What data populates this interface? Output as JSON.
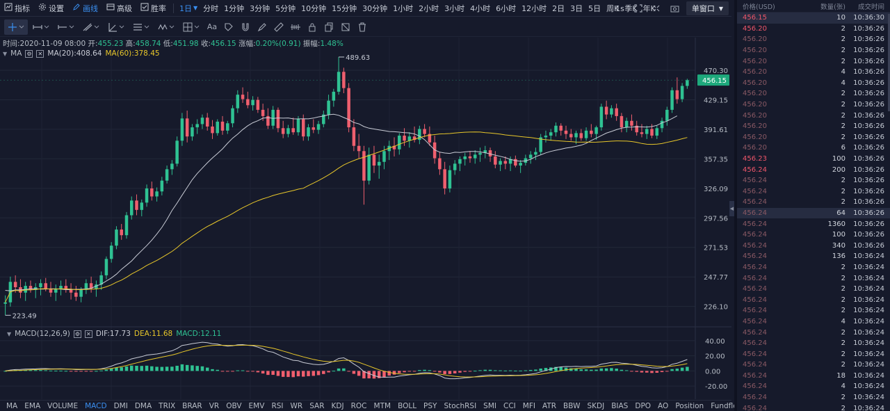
{
  "toolbar": {
    "items": [
      {
        "label": "指标",
        "icon": "indicator-icon",
        "active": false
      },
      {
        "label": "设置",
        "icon": "gear-icon",
        "active": false
      },
      {
        "label": "画线",
        "icon": "pencil-icon",
        "active": true
      },
      {
        "label": "高级",
        "icon": "advanced-icon",
        "active": false
      },
      {
        "label": "胜率",
        "icon": "winrate-icon",
        "active": false
      }
    ],
    "timeframes": [
      "1日",
      "分时",
      "1分钟",
      "3分钟",
      "5分钟",
      "10分钟",
      "15分钟",
      "30分钟",
      "1小时",
      "2小时",
      "3小时",
      "4小时",
      "6小时",
      "12小时",
      "2日",
      "3日",
      "5日",
      "周K",
      "季K",
      "年K"
    ],
    "active_timeframe": "1日",
    "interval": "1s",
    "window_mode": "单窗口"
  },
  "chart_header": {
    "time_label": "时间:",
    "time": "2020-11-09 08:00",
    "open_label": "开:",
    "open": "455.23",
    "high_label": "高:",
    "high": "458.74",
    "low_label": "低:",
    "low": "451.98",
    "close_label": "收:",
    "close": "456.15",
    "change_label": "涨幅:",
    "change": "0.20%(0.91)",
    "amp_label": "振幅:",
    "amp": "1.48%"
  },
  "ma": {
    "label": "MA",
    "ma20": "MA(20):408.64",
    "ma60": "MA(60):378.45"
  },
  "macd": {
    "label": "MACD(12,26,9)",
    "dif": "DIF:17.73",
    "dea": "DEA:11.68",
    "macd": "MACD:12.11"
  },
  "colors": {
    "up": "#2fc293",
    "down": "#ef5f6e",
    "ma20": "#c9ccd6",
    "ma60": "#e8c72a",
    "accent": "#3a8ff0"
  },
  "chart_data": {
    "type": "candlestick",
    "y_ticks": [
      "470.30",
      "429.15",
      "391.61",
      "357.35",
      "326.09",
      "297.56",
      "271.53",
      "247.77",
      "226.10"
    ],
    "current_price": "456.15",
    "max_label": "489.63",
    "min_label": "223.49",
    "scale": "log",
    "macd_ticks": [
      "40.00",
      "20.00",
      "0.00",
      "-20.00"
    ],
    "candles": [
      [
        228,
        234,
        220,
        229
      ],
      [
        229,
        248,
        226,
        244
      ],
      [
        244,
        249,
        236,
        240
      ],
      [
        240,
        246,
        232,
        236
      ],
      [
        236,
        244,
        230,
        241
      ],
      [
        241,
        245,
        236,
        238
      ],
      [
        238,
        243,
        232,
        240
      ],
      [
        240,
        246,
        234,
        243
      ],
      [
        243,
        247,
        237,
        239
      ],
      [
        239,
        244,
        233,
        236
      ],
      [
        236,
        242,
        230,
        239
      ],
      [
        239,
        245,
        234,
        241
      ],
      [
        241,
        246,
        236,
        238
      ],
      [
        238,
        243,
        231,
        236
      ],
      [
        236,
        241,
        230,
        233
      ],
      [
        233,
        240,
        229,
        238
      ],
      [
        238,
        246,
        235,
        243
      ],
      [
        243,
        248,
        236,
        239
      ],
      [
        239,
        245,
        233,
        242
      ],
      [
        242,
        252,
        238,
        249
      ],
      [
        249,
        264,
        246,
        262
      ],
      [
        262,
        276,
        259,
        273
      ],
      [
        273,
        290,
        270,
        287
      ],
      [
        287,
        292,
        278,
        282
      ],
      [
        282,
        303,
        279,
        300
      ],
      [
        300,
        318,
        296,
        314
      ],
      [
        314,
        320,
        300,
        305
      ],
      [
        305,
        315,
        299,
        312
      ],
      [
        312,
        330,
        308,
        326
      ],
      [
        326,
        333,
        314,
        318
      ],
      [
        318,
        327,
        313,
        323
      ],
      [
        323,
        338,
        319,
        334
      ],
      [
        334,
        350,
        331,
        346
      ],
      [
        346,
        356,
        340,
        352
      ],
      [
        352,
        383,
        349,
        378
      ],
      [
        378,
        412,
        372,
        405
      ],
      [
        405,
        415,
        376,
        383
      ],
      [
        383,
        398,
        378,
        394
      ],
      [
        394,
        404,
        386,
        398
      ],
      [
        398,
        410,
        392,
        406
      ],
      [
        406,
        412,
        390,
        395
      ],
      [
        395,
        403,
        380,
        387
      ],
      [
        387,
        404,
        384,
        401
      ],
      [
        401,
        408,
        385,
        390
      ],
      [
        390,
        402,
        386,
        399
      ],
      [
        399,
        422,
        394,
        418
      ],
      [
        418,
        442,
        412,
        436
      ],
      [
        436,
        446,
        425,
        430
      ],
      [
        430,
        440,
        418,
        422
      ],
      [
        422,
        434,
        415,
        429
      ],
      [
        429,
        433,
        412,
        416
      ],
      [
        416,
        424,
        402,
        408
      ],
      [
        408,
        418,
        392,
        396
      ],
      [
        396,
        421,
        392,
        416
      ],
      [
        416,
        419,
        388,
        393
      ],
      [
        393,
        402,
        381,
        386
      ],
      [
        386,
        397,
        382,
        393
      ],
      [
        393,
        406,
        385,
        388
      ],
      [
        388,
        408,
        384,
        404
      ],
      [
        404,
        410,
        378,
        383
      ],
      [
        383,
        398,
        378,
        394
      ],
      [
        394,
        404,
        387,
        391
      ],
      [
        391,
        402,
        386,
        398
      ],
      [
        398,
        415,
        394,
        410
      ],
      [
        410,
        436,
        404,
        428
      ],
      [
        428,
        444,
        420,
        440
      ],
      [
        440,
        490,
        436,
        468
      ],
      [
        468,
        474,
        438,
        445
      ],
      [
        445,
        452,
        388,
        394
      ],
      [
        394,
        404,
        366,
        372
      ],
      [
        372,
        386,
        358,
        366
      ],
      [
        366,
        372,
        310,
        334
      ],
      [
        334,
        370,
        330,
        362
      ],
      [
        362,
        372,
        342,
        350
      ],
      [
        350,
        362,
        336,
        354
      ],
      [
        354,
        372,
        346,
        366
      ],
      [
        366,
        378,
        356,
        372
      ],
      [
        372,
        382,
        360,
        368
      ],
      [
        368,
        387,
        362,
        384
      ],
      [
        384,
        393,
        372,
        378
      ],
      [
        378,
        388,
        370,
        383
      ],
      [
        383,
        395,
        376,
        379
      ],
      [
        379,
        396,
        374,
        392
      ],
      [
        392,
        398,
        382,
        386
      ],
      [
        386,
        395,
        372,
        376
      ],
      [
        376,
        384,
        352,
        358
      ],
      [
        358,
        365,
        340,
        346
      ],
      [
        346,
        354,
        320,
        326
      ],
      [
        326,
        350,
        322,
        345
      ],
      [
        345,
        356,
        340,
        352
      ],
      [
        352,
        360,
        344,
        357
      ],
      [
        357,
        364,
        350,
        360
      ],
      [
        360,
        366,
        353,
        358
      ],
      [
        358,
        367,
        352,
        362
      ],
      [
        362,
        370,
        354,
        364
      ],
      [
        364,
        372,
        358,
        367
      ],
      [
        367,
        370,
        354,
        360
      ],
      [
        360,
        366,
        347,
        351
      ],
      [
        351,
        358,
        344,
        355
      ],
      [
        355,
        360,
        346,
        352
      ],
      [
        352,
        360,
        344,
        357
      ],
      [
        357,
        361,
        348,
        350
      ],
      [
        350,
        356,
        342,
        353
      ],
      [
        353,
        362,
        350,
        358
      ],
      [
        358,
        366,
        352,
        362
      ],
      [
        362,
        370,
        356,
        365
      ],
      [
        365,
        386,
        362,
        382
      ],
      [
        382,
        390,
        376,
        384
      ],
      [
        384,
        392,
        378,
        388
      ],
      [
        388,
        400,
        383,
        396
      ],
      [
        396,
        399,
        384,
        390
      ],
      [
        390,
        396,
        380,
        386
      ],
      [
        386,
        392,
        378,
        382
      ],
      [
        382,
        390,
        374,
        387
      ],
      [
        387,
        392,
        378,
        381
      ],
      [
        381,
        394,
        378,
        390
      ],
      [
        390,
        398,
        382,
        386
      ],
      [
        386,
        396,
        379,
        394
      ],
      [
        394,
        424,
        390,
        420
      ],
      [
        420,
        428,
        404,
        410
      ],
      [
        410,
        422,
        406,
        418
      ],
      [
        418,
        424,
        402,
        408
      ],
      [
        408,
        412,
        388,
        394
      ],
      [
        394,
        406,
        388,
        402
      ],
      [
        402,
        410,
        390,
        396
      ],
      [
        396,
        402,
        384,
        388
      ],
      [
        388,
        398,
        382,
        386
      ],
      [
        386,
        396,
        380,
        392
      ],
      [
        392,
        398,
        381,
        384
      ],
      [
        384,
        396,
        380,
        393
      ],
      [
        393,
        406,
        388,
        402
      ],
      [
        402,
        420,
        396,
        416
      ],
      [
        416,
        446,
        412,
        442
      ],
      [
        442,
        460,
        424,
        430
      ],
      [
        430,
        452,
        426,
        448
      ],
      [
        448,
        458,
        444,
        456
      ]
    ]
  },
  "trades": {
    "headers": [
      "价格(USD)",
      "数量(张)",
      "成交时间"
    ],
    "rows": [
      {
        "price": "456.15",
        "qty": "10",
        "time": "10:36:30",
        "style": "first",
        "hl": true
      },
      {
        "price": "456.20",
        "qty": "2",
        "time": "10:36:26",
        "style": "bright",
        "hl": false
      },
      {
        "price": "456.20",
        "qty": "2",
        "time": "10:36:26",
        "style": "dim",
        "hl": false
      },
      {
        "price": "456.20",
        "qty": "2",
        "time": "10:36:26",
        "style": "dim",
        "hl": false
      },
      {
        "price": "456.20",
        "qty": "2",
        "time": "10:36:26",
        "style": "dim",
        "hl": false
      },
      {
        "price": "456.20",
        "qty": "4",
        "time": "10:36:26",
        "style": "dim",
        "hl": false
      },
      {
        "price": "456.20",
        "qty": "4",
        "time": "10:36:26",
        "style": "dim",
        "hl": false
      },
      {
        "price": "456.20",
        "qty": "2",
        "time": "10:36:26",
        "style": "dim",
        "hl": false
      },
      {
        "price": "456.20",
        "qty": "2",
        "time": "10:36:26",
        "style": "dim",
        "hl": false
      },
      {
        "price": "456.20",
        "qty": "2",
        "time": "10:36:26",
        "style": "dim",
        "hl": false
      },
      {
        "price": "456.20",
        "qty": "2",
        "time": "10:36:26",
        "style": "dim",
        "hl": false
      },
      {
        "price": "456.20",
        "qty": "2",
        "time": "10:36:26",
        "style": "dim",
        "hl": false
      },
      {
        "price": "456.20",
        "qty": "6",
        "time": "10:36:26",
        "style": "dim",
        "hl": false
      },
      {
        "price": "456.23",
        "qty": "100",
        "time": "10:36:26",
        "style": "bright",
        "hl": false
      },
      {
        "price": "456.24",
        "qty": "200",
        "time": "10:36:26",
        "style": "bright",
        "hl": false
      },
      {
        "price": "456.24",
        "qty": "2",
        "time": "10:36:26",
        "style": "dim",
        "hl": false
      },
      {
        "price": "456.24",
        "qty": "2",
        "time": "10:36:26",
        "style": "dim",
        "hl": false
      },
      {
        "price": "456.24",
        "qty": "2",
        "time": "10:36:26",
        "style": "dim",
        "hl": false
      },
      {
        "price": "456.24",
        "qty": "64",
        "time": "10:36:26",
        "style": "dim",
        "hl": true
      },
      {
        "price": "456.24",
        "qty": "1360",
        "time": "10:36:26",
        "style": "dim",
        "hl": false
      },
      {
        "price": "456.24",
        "qty": "100",
        "time": "10:36:26",
        "style": "dim",
        "hl": false
      },
      {
        "price": "456.24",
        "qty": "340",
        "time": "10:36:26",
        "style": "dim",
        "hl": false
      },
      {
        "price": "456.24",
        "qty": "136",
        "time": "10:36:24",
        "style": "dim",
        "hl": false
      },
      {
        "price": "456.24",
        "qty": "2",
        "time": "10:36:24",
        "style": "dim",
        "hl": false
      },
      {
        "price": "456.24",
        "qty": "2",
        "time": "10:36:24",
        "style": "dim",
        "hl": false
      },
      {
        "price": "456.24",
        "qty": "2",
        "time": "10:36:24",
        "style": "dim",
        "hl": false
      },
      {
        "price": "456.24",
        "qty": "2",
        "time": "10:36:24",
        "style": "dim",
        "hl": false
      },
      {
        "price": "456.24",
        "qty": "2",
        "time": "10:36:24",
        "style": "dim",
        "hl": false
      },
      {
        "price": "456.24",
        "qty": "4",
        "time": "10:36:24",
        "style": "dim",
        "hl": false
      },
      {
        "price": "456.24",
        "qty": "2",
        "time": "10:36:24",
        "style": "dim",
        "hl": false
      },
      {
        "price": "456.24",
        "qty": "2",
        "time": "10:36:24",
        "style": "dim",
        "hl": false
      },
      {
        "price": "456.24",
        "qty": "2",
        "time": "10:36:24",
        "style": "dim",
        "hl": false
      },
      {
        "price": "456.24",
        "qty": "2",
        "time": "10:36:24",
        "style": "dim",
        "hl": false
      },
      {
        "price": "456.24",
        "qty": "18",
        "time": "10:36:24",
        "style": "dim",
        "hl": false
      },
      {
        "price": "456.24",
        "qty": "4",
        "time": "10:36:24",
        "style": "dim",
        "hl": false
      },
      {
        "price": "456.24",
        "qty": "2",
        "time": "10:36:24",
        "style": "dim",
        "hl": false
      },
      {
        "price": "456.24",
        "qty": "2",
        "time": "10:36:24",
        "style": "dim",
        "hl": false
      }
    ]
  },
  "indicators": [
    "MA",
    "EMA",
    "VOLUME",
    "MACD",
    "DMI",
    "DMA",
    "TRIX",
    "BRAR",
    "VR",
    "OBV",
    "EMV",
    "RSI",
    "WR",
    "SAR",
    "KDJ",
    "ROC",
    "MTM",
    "BOLL",
    "PSY",
    "StochRSI",
    "SMI",
    "CCI",
    "MFI",
    "ATR",
    "BBW",
    "SKDJ",
    "BIAS",
    "DPO",
    "AO",
    "Position",
    "Fundflow"
  ],
  "active_indicator": "MACD"
}
